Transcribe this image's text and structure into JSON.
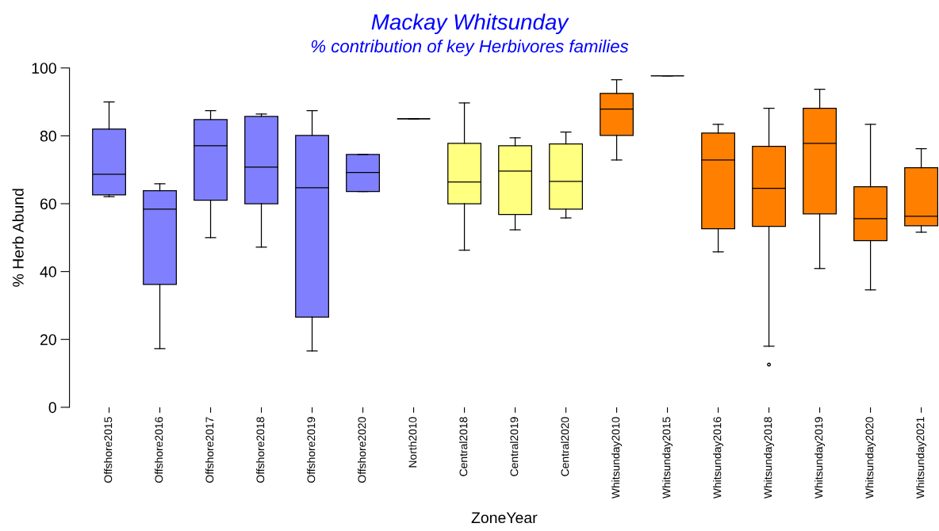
{
  "chart_data": {
    "type": "box",
    "title": "Mackay Whitsunday",
    "subtitle": "% contribution of key Herbivores families",
    "xlabel": "ZoneYear",
    "ylabel": "% Herb Abund",
    "categories": [
      "Offshore2015",
      "Offshore2016",
      "Offshore2017",
      "Offshore2018",
      "Offshore2019",
      "Offshore2020",
      "North2010",
      "Central2018",
      "Central2019",
      "Central2020",
      "Whitsunday2010",
      "Whitsunday2015",
      "Whitsunday2016",
      "Whitsunday2018",
      "Whitsunday2019",
      "Whitsunday2020",
      "Whitsunday2021"
    ],
    "colors": [
      "#8080ff",
      "#8080ff",
      "#8080ff",
      "#8080ff",
      "#8080ff",
      "#8080ff",
      "#000000",
      "#ffff80",
      "#ffff80",
      "#ffff80",
      "#ff8000",
      "#000000",
      "#ff8000",
      "#ff8000",
      "#ff8000",
      "#ff8000",
      "#ff8000"
    ],
    "boxes": [
      {
        "low": 62.1,
        "q1": 62.6,
        "median": 68.7,
        "q3": 82.0,
        "high": 90.0
      },
      {
        "low": 17.3,
        "q1": 36.2,
        "median": 58.4,
        "q3": 63.8,
        "high": 65.9
      },
      {
        "low": 50.0,
        "q1": 61.0,
        "median": 77.1,
        "q3": 84.8,
        "high": 87.4
      },
      {
        "low": 47.2,
        "q1": 60.0,
        "median": 70.8,
        "q3": 85.7,
        "high": 86.4
      },
      {
        "low": 16.6,
        "q1": 26.6,
        "median": 64.7,
        "q3": 80.1,
        "high": 87.4
      },
      {
        "low": 63.6,
        "q1": 63.6,
        "median": 69.2,
        "q3": 74.5,
        "high": 74.5
      },
      {
        "low": 85.0,
        "q1": 85.0,
        "median": 85.0,
        "q3": 85.0,
        "high": 85.0
      },
      {
        "low": 46.3,
        "q1": 60.0,
        "median": 66.4,
        "q3": 77.8,
        "high": 89.7
      },
      {
        "low": 52.3,
        "q1": 56.8,
        "median": 69.6,
        "q3": 77.1,
        "high": 79.4
      },
      {
        "low": 55.8,
        "q1": 58.4,
        "median": 66.6,
        "q3": 77.6,
        "high": 81.1
      },
      {
        "low": 72.9,
        "q1": 80.1,
        "median": 87.9,
        "q3": 92.5,
        "high": 96.5
      },
      {
        "low": 97.7,
        "q1": 97.7,
        "median": 97.7,
        "q3": 97.7,
        "high": 97.7
      },
      {
        "low": 45.8,
        "q1": 52.6,
        "median": 72.9,
        "q3": 80.8,
        "high": 83.4
      },
      {
        "low": 18.0,
        "q1": 53.3,
        "median": 64.5,
        "q3": 76.9,
        "high": 88.1,
        "outliers": [
          12.6
        ]
      },
      {
        "low": 40.9,
        "q1": 57.0,
        "median": 77.8,
        "q3": 88.1,
        "high": 93.7
      },
      {
        "low": 34.6,
        "q1": 49.1,
        "median": 55.6,
        "q3": 65.0,
        "high": 83.4
      },
      {
        "low": 51.6,
        "q1": 53.5,
        "median": 56.3,
        "q3": 70.6,
        "high": 76.2
      }
    ],
    "ylim": [
      0,
      100
    ],
    "yticks": [
      0,
      20,
      40,
      60,
      80,
      100
    ],
    "grid": false,
    "legend": false
  }
}
